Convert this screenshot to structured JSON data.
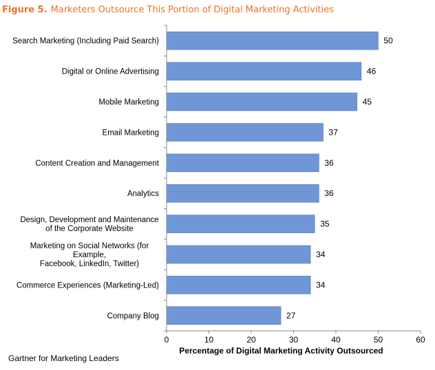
{
  "figure": {
    "number": "Figure 5.",
    "title": "Marketers Outsource This Portion of Digital Marketing Activities"
  },
  "source": "Gartner for Marketing Leaders",
  "colors": {
    "bar": "#6f97d8",
    "bar_edge": "#4f78bc",
    "title": "#e8742e"
  },
  "chart_data": {
    "type": "bar",
    "orientation": "horizontal",
    "categories": [
      "Search Marketing (Including Paid Search)",
      "Digital or Online Advertising",
      "Mobile Marketing",
      "Email Marketing",
      "Content Creation and Management",
      "Analytics",
      "Design, Development and Maintenance\nof the Corporate Website",
      "Marketing on Social Networks (for\nExample,\nFacebook, LinkedIn, Twitter)",
      "Commerce Experiences (Marketing-Led)",
      "Company Blog"
    ],
    "values": [
      50,
      46,
      45,
      37,
      36,
      36,
      35,
      34,
      34,
      27
    ],
    "data_labels": [
      "50",
      "46",
      "45",
      "37",
      "36",
      "36",
      "35",
      "34",
      "34",
      "27"
    ],
    "xlabel": "Percentage of Digital Marketing Activity Outsourced",
    "ylabel": "",
    "xlim": [
      0,
      60
    ],
    "xticks": [
      "0",
      "10",
      "20",
      "30",
      "40",
      "50",
      "60"
    ],
    "grid": false,
    "legend": "none"
  }
}
